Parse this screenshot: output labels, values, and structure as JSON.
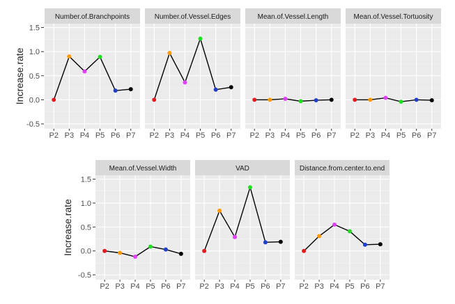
{
  "chart_data": {
    "type": "line",
    "x": [
      "P2",
      "P3",
      "P4",
      "P5",
      "P6",
      "P7"
    ],
    "point_colors": [
      "#e41a1c",
      "#ff9900",
      "#e040fb",
      "#22dd22",
      "#1f3fcf",
      "#000000"
    ],
    "line_color": "#000000",
    "panel_background": "#ebebeb",
    "strip_background": "#d9d9d9",
    "grid": true,
    "groups": [
      {
        "ylabel": "Increase.rate",
        "ylim": [
          -0.6,
          1.58
        ],
        "yticks": [
          -0.5,
          0.0,
          0.5,
          1.0,
          1.5
        ],
        "ytick_labels": [
          "-0.5",
          "0.0",
          "0.5",
          "1.0",
          "1.5"
        ],
        "panels": [
          {
            "title": "Number.of.Branchpoints",
            "values": [
              0.0,
              0.9,
              0.59,
              0.89,
              0.19,
              0.22
            ]
          },
          {
            "title": "Number.of.Vessel.Edges",
            "values": [
              0.0,
              0.97,
              0.36,
              1.27,
              0.21,
              0.26
            ]
          },
          {
            "title": "Mean.of.Vessel.Length",
            "values": [
              0.0,
              0.0,
              0.02,
              -0.03,
              -0.01,
              0.0
            ]
          },
          {
            "title": "Mean.of.Vessel.Tortuosity",
            "values": [
              0.0,
              0.0,
              0.04,
              -0.04,
              0.0,
              -0.01
            ]
          }
        ]
      },
      {
        "ylabel": "Increase.rate",
        "ylim": [
          -0.6,
          1.58
        ],
        "yticks": [
          -0.5,
          0.0,
          0.5,
          1.0,
          1.5
        ],
        "ytick_labels": [
          "-0.5",
          "0.0",
          "0.5",
          "1.0",
          "1.5"
        ],
        "panels": [
          {
            "title": "Mean.of.Vessel.Width",
            "values": [
              0.0,
              -0.04,
              -0.12,
              0.09,
              0.03,
              -0.06
            ]
          },
          {
            "title": "VAD",
            "values": [
              0.0,
              0.84,
              0.29,
              1.33,
              0.18,
              0.19
            ]
          },
          {
            "title": "Distance.from.center.to.end",
            "values": [
              0.0,
              0.31,
              0.55,
              0.41,
              0.13,
              0.14
            ]
          }
        ]
      }
    ]
  }
}
